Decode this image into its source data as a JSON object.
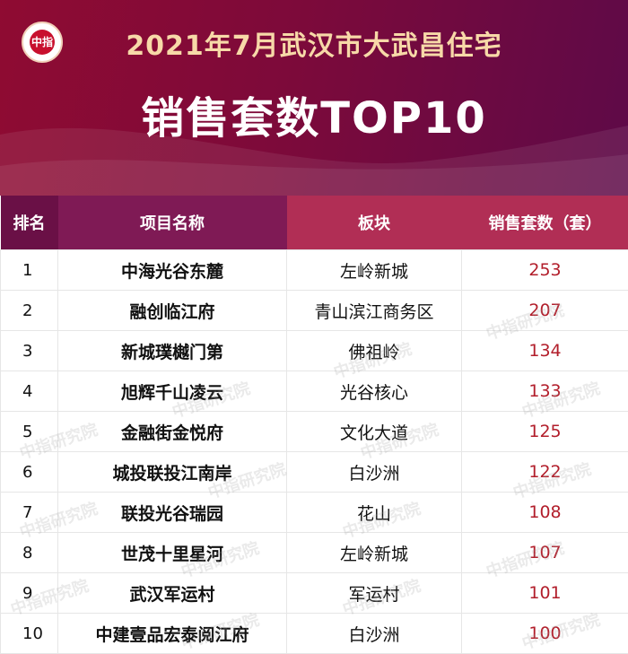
{
  "header": {
    "logo_mark": "中指",
    "title_line1": "2021年7月武汉市大武昌住宅",
    "title_line2": "销售套数TOP10"
  },
  "table": {
    "columns": [
      "排名",
      "项目名称",
      "板块",
      "销售套数（套）"
    ],
    "rows": [
      {
        "rank": "1",
        "name": "中海光谷东麓",
        "area": "左岭新城",
        "sales": "253"
      },
      {
        "rank": "2",
        "name": "融创临江府",
        "area": "青山滨江商务区",
        "sales": "207"
      },
      {
        "rank": "3",
        "name": "新城璞樾门第",
        "area": "佛祖岭",
        "sales": "134"
      },
      {
        "rank": "4",
        "name": "旭辉千山凌云",
        "area": "光谷核心",
        "sales": "133"
      },
      {
        "rank": "5",
        "name": "金融街金悦府",
        "area": "文化大道",
        "sales": "125"
      },
      {
        "rank": "6",
        "name": "城投联投江南岸",
        "area": "白沙洲",
        "sales": "122"
      },
      {
        "rank": "7",
        "name": "联投光谷瑞园",
        "area": "花山",
        "sales": "108"
      },
      {
        "rank": "8",
        "name": "世茂十里星河",
        "area": "左岭新城",
        "sales": "107"
      },
      {
        "rank": "9",
        "name": "武汉军运村",
        "area": "军运村",
        "sales": "101"
      },
      {
        "rank": "10",
        "name": "中建壹品宏泰阅江府",
        "area": "白沙洲",
        "sales": "100"
      }
    ]
  },
  "watermark": "中指研究院",
  "colors": {
    "header_bg": "#8f0b32",
    "title_gold": "#f7d9a8",
    "sales_red": "#b21e2b"
  }
}
